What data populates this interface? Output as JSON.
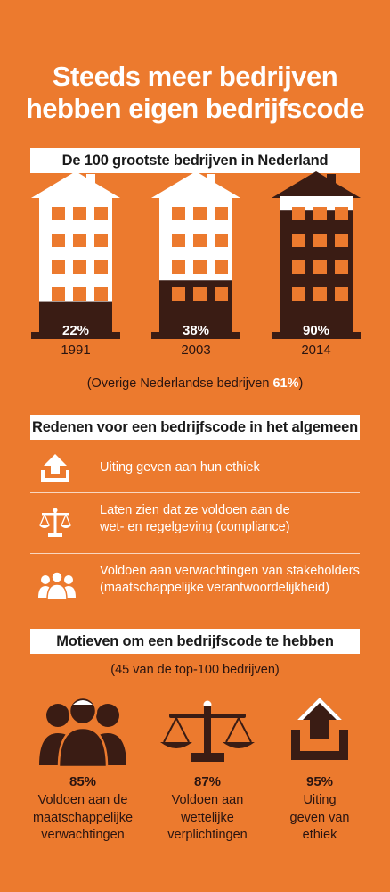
{
  "title": {
    "line1": "Steeds meer bedrijven",
    "line2": "hebben eigen bedrijfscode"
  },
  "section1": {
    "heading": "De 100 grootste bedrijven in Nederland"
  },
  "chart_data": {
    "type": "bar",
    "title": "De 100 grootste bedrijven in Nederland",
    "categories": [
      "1991",
      "2003",
      "2014"
    ],
    "values": [
      22,
      38,
      90
    ],
    "value_labels": [
      "22%",
      "38%",
      "90%"
    ],
    "unit": "%",
    "note": {
      "prefix": "(Overige Nederlandse bedrijven ",
      "value": "61%",
      "suffix": ")"
    }
  },
  "section2": {
    "heading": "Redenen voor een bedrijfscode in het algemeen",
    "items": [
      {
        "icon": "upload-icon",
        "lines": [
          "Uiting geven aan hun ethiek"
        ]
      },
      {
        "icon": "scales-icon",
        "lines": [
          "Laten zien dat ze voldoen aan de",
          "wet- en regelgeving (compliance)"
        ]
      },
      {
        "icon": "people-icon",
        "lines": [
          "Voldoen aan verwachtingen van stakeholders",
          "(maatschappelijke verantwoordelijkheid)"
        ]
      }
    ]
  },
  "section3": {
    "heading": "Motieven om een bedrijfscode te hebben",
    "subtitle": "(45 van de top-100 bedrijven)",
    "items": [
      {
        "icon": "people-icon",
        "pct": "85%",
        "lines": [
          "Voldoen aan de",
          "maatschappelijke",
          "verwachtingen"
        ]
      },
      {
        "icon": "scales-icon",
        "pct": "87%",
        "lines": [
          "Voldoen aan",
          "wettelijke",
          "verplichtingen"
        ]
      },
      {
        "icon": "upload-icon",
        "pct": "95%",
        "lines": [
          "Uiting",
          "geven van",
          "ethiek"
        ]
      }
    ]
  },
  "colors": {
    "background": "#EC7A2E",
    "dark": "#3a1c14",
    "white": "#ffffff"
  }
}
